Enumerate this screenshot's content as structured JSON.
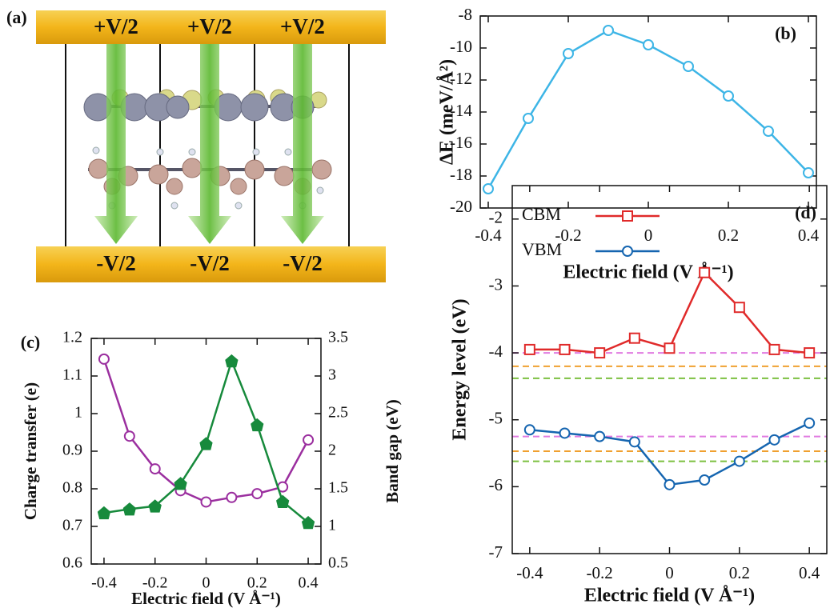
{
  "diagram": {
    "label": "(a)",
    "top_labels": [
      "+V/2",
      "+V/2",
      "+V/2"
    ],
    "bottom_labels": [
      "-V/2",
      "-V/2",
      "-V/2"
    ]
  },
  "chart_data": [
    {
      "type": "line",
      "label": "(b)",
      "xlabel": "Electric field (V Å⁻¹)",
      "ylabel": "ΔE (meV/Å²)",
      "x": [
        -0.4,
        -0.3,
        -0.2,
        -0.1,
        0,
        0.1,
        0.2,
        0.3,
        0.4
      ],
      "series": [
        {
          "color": "#3db5e6",
          "marker": "circle",
          "values": [
            -18.8,
            -14.4,
            -10.35,
            -8.9,
            -9.8,
            -11.15,
            -13.0,
            -15.2,
            -17.8
          ]
        }
      ],
      "xlim": [
        -0.42,
        0.42
      ],
      "xticks": [
        -0.4,
        -0.2,
        0,
        0.2,
        0.4
      ],
      "ylim": [
        -20,
        -8
      ],
      "yticks": [
        -20,
        -18,
        -16,
        -14,
        -12,
        -10,
        -8
      ]
    },
    {
      "type": "line",
      "label": "(c)",
      "xlabel": "Electric field (V Å⁻¹)",
      "ylabel": "Charge transfer (e)",
      "y2label": "Band gap (eV)",
      "ylabel_color": "#9b2f9f",
      "y2label_color": "#178a3c",
      "x": [
        -0.4,
        -0.3,
        -0.2,
        -0.1,
        0,
        0.1,
        0.2,
        0.3,
        0.4
      ],
      "series": [
        {
          "color": "#9b2f9f",
          "marker": "circle",
          "values": [
            1.145,
            0.94,
            0.853,
            0.795,
            0.765,
            0.777,
            0.787,
            0.805,
            0.93
          ]
        },
        {
          "color": "#178a3c",
          "marker": "diamond",
          "axis": "y2",
          "values": [
            1.18,
            1.23,
            1.27,
            1.57,
            2.1,
            3.2,
            2.35,
            1.33,
            1.05
          ]
        }
      ],
      "xlim": [
        -0.45,
        0.45
      ],
      "xticks": [
        -0.4,
        -0.2,
        0,
        0.2,
        0.4
      ],
      "ylim": [
        0.6,
        1.2
      ],
      "yticks": [
        0.6,
        0.7,
        0.8,
        0.9,
        1,
        1.1,
        1.2
      ],
      "y2lim": [
        0.5,
        3.5
      ],
      "y2ticks": [
        0.5,
        1,
        1.5,
        2,
        2.5,
        3,
        3.5
      ]
    },
    {
      "type": "line",
      "label": "(d)",
      "xlabel": "Electric field (V Å⁻¹)",
      "ylabel": "Energy level (eV)",
      "legend": "upper left",
      "x": [
        -0.4,
        -0.3,
        -0.2,
        -0.1,
        0,
        0.1,
        0.2,
        0.3,
        0.4
      ],
      "series": [
        {
          "name": "CBM",
          "color": "#e02a2a",
          "marker": "square",
          "values": [
            -3.95,
            -3.95,
            -4.0,
            -3.78,
            -3.93,
            -2.8,
            -3.32,
            -3.95,
            -4.0
          ]
        },
        {
          "name": "VBM",
          "color": "#1565b0",
          "marker": "circle",
          "values": [
            -5.15,
            -5.2,
            -5.25,
            -5.33,
            -5.97,
            -5.9,
            -5.62,
            -5.3,
            -5.05
          ]
        }
      ],
      "reference_lines": [
        {
          "value": -4.0,
          "color": "#e07be0"
        },
        {
          "value": -4.2,
          "color": "#f0a030"
        },
        {
          "value": -4.38,
          "color": "#7cc040"
        },
        {
          "value": -5.25,
          "color": "#e07be0"
        },
        {
          "value": -5.47,
          "color": "#f0a030"
        },
        {
          "value": -5.62,
          "color": "#7cc040"
        }
      ],
      "xlim": [
        -0.45,
        0.45
      ],
      "xticks": [
        -0.4,
        -0.2,
        0,
        0.2,
        0.4
      ],
      "ylim": [
        -7,
        -1.5
      ],
      "yticks": [
        -7,
        -6,
        -5,
        -4,
        -3,
        -2
      ]
    }
  ]
}
